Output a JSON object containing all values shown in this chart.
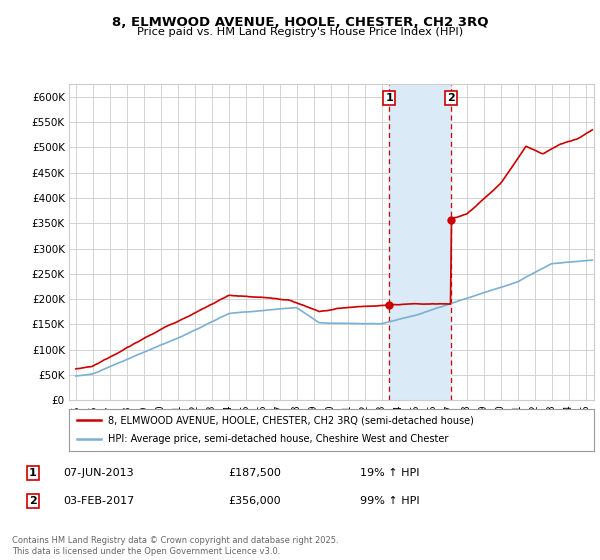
{
  "title": "8, ELMWOOD AVENUE, HOOLE, CHESTER, CH2 3RQ",
  "subtitle": "Price paid vs. HM Land Registry's House Price Index (HPI)",
  "ylabel_ticks": [
    "£0",
    "£50K",
    "£100K",
    "£150K",
    "£200K",
    "£250K",
    "£300K",
    "£350K",
    "£400K",
    "£450K",
    "£500K",
    "£550K",
    "£600K"
  ],
  "ytick_values": [
    0,
    50000,
    100000,
    150000,
    200000,
    250000,
    300000,
    350000,
    400000,
    450000,
    500000,
    550000,
    600000
  ],
  "ylim": [
    0,
    625000
  ],
  "xlim_start": 1994.6,
  "xlim_end": 2025.5,
  "sale1_date": 2013.44,
  "sale1_price": 187500,
  "sale1_label": "1",
  "sale2_date": 2017.09,
  "sale2_price": 356000,
  "sale2_label": "2",
  "legend_line1": "8, ELMWOOD AVENUE, HOOLE, CHESTER, CH2 3RQ (semi-detached house)",
  "legend_line2": "HPI: Average price, semi-detached house, Cheshire West and Chester",
  "table_row1": [
    "1",
    "07-JUN-2013",
    "£187,500",
    "19% ↑ HPI"
  ],
  "table_row2": [
    "2",
    "03-FEB-2017",
    "£356,000",
    "99% ↑ HPI"
  ],
  "footer": "Contains HM Land Registry data © Crown copyright and database right 2025.\nThis data is licensed under the Open Government Licence v3.0.",
  "line_color_red": "#cc0000",
  "line_color_blue": "#7bafd4",
  "shade_color": "#daeaf6",
  "background_color": "#ffffff",
  "grid_color": "#cccccc"
}
